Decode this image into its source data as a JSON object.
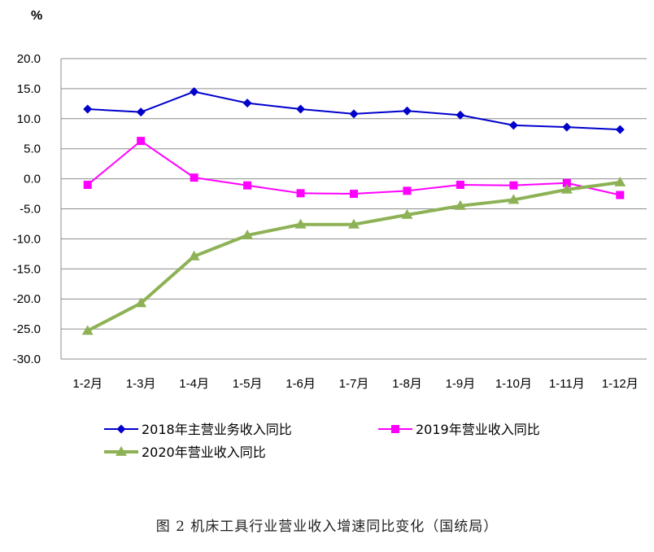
{
  "figure": {
    "caption": "图 2  机床工具行业营业收入增速同比变化（国统局）"
  },
  "chart_data": {
    "type": "line",
    "unit_label": "%",
    "categories": [
      "1-2月",
      "1-3月",
      "1-4月",
      "1-5月",
      "1-6月",
      "1-7月",
      "1-8月",
      "1-9月",
      "1-10月",
      "1-11月",
      "1-12月"
    ],
    "yticks": [
      "20.0",
      "15.0",
      "10.0",
      "5.0",
      "0.0",
      "-5.0",
      "-10.0",
      "-15.0",
      "-20.0",
      "-25.0",
      "-30.0"
    ],
    "ylim": [
      -30,
      20
    ],
    "ystep": 5,
    "grid": true,
    "legend_position": "bottom",
    "series": [
      {
        "name": "2018年主营业务收入同比",
        "color": "#0000CC",
        "marker": "diamond",
        "values": [
          11.6,
          11.1,
          14.5,
          12.6,
          11.6,
          10.8,
          11.3,
          10.6,
          8.9,
          8.6,
          8.2
        ]
      },
      {
        "name": "2019年营业收入同比",
        "color": "#FF00FF",
        "marker": "square",
        "values": [
          -1.0,
          6.3,
          0.2,
          -1.1,
          -2.4,
          -2.5,
          -2.0,
          -1.0,
          -1.1,
          -0.7,
          -2.7
        ]
      },
      {
        "name": "2020年营业收入同比",
        "color": "#8DB255",
        "marker": "triangle",
        "values": [
          -25.3,
          -20.7,
          -12.9,
          -9.4,
          -7.6,
          -7.6,
          -6.0,
          -4.5,
          -3.5,
          -1.8,
          -0.6
        ]
      }
    ]
  }
}
